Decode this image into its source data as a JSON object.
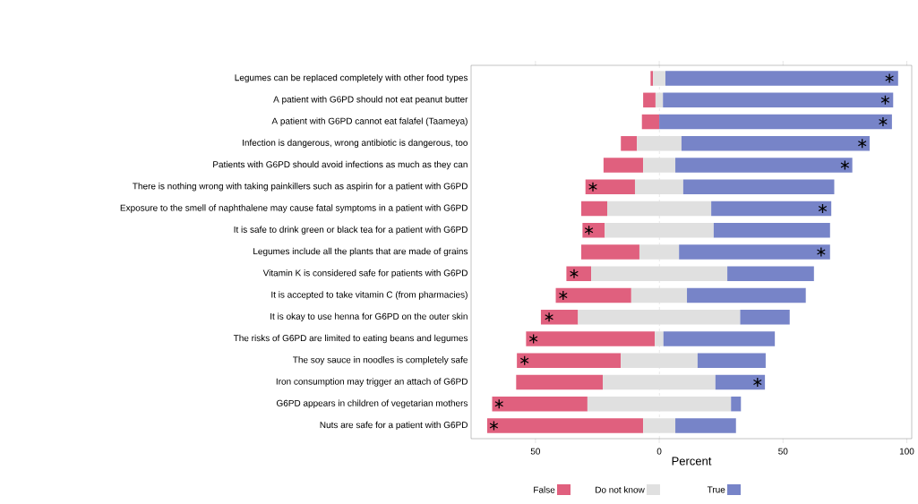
{
  "chart_data": {
    "type": "bar",
    "orientation": "horizontal",
    "xlabel": "Percent",
    "categories": [
      "Legumes can be replaced completely with other food types",
      "A patient with G6PD should not eat peanut butter",
      "A patient with G6PD cannot eat falafel (Taameya)",
      "Infection is dangerous, wrong antibiotic is dangerous, too",
      "Patients with G6PD should avoid infections as much as they can",
      "There is nothing wrong with taking painkillers such as aspirin for a patient with G6PD",
      "Exposure to the smell of naphthalene may cause fatal symptoms in a patient with G6PD",
      "It is safe to drink green or black tea for a patient with G6PD",
      "Legumes include all the plants that are made of grains",
      "Vitamin K is considered safe for patients with G6PD",
      "It is accepted to take vitamin C (from pharmacies)",
      "It is okay to use henna for G6PD on the outer skin",
      "The risks of G6PD are limited to eating beans and legumes",
      "The soy sauce in noodles is completely safe",
      "Iron consumption may trigger an attach of G6PD",
      "G6PD appears in children of vegetarian mothers",
      "Nuts are safe for a patient with G6PD"
    ],
    "series": [
      {
        "name": "False",
        "color": "#e0607e",
        "base": [
          -3.5,
          -6.5,
          -7,
          -15.5,
          -22.5,
          -29.8,
          -31.5,
          -31,
          -31.5,
          -37.5,
          -41.8,
          -47.8,
          -53.8,
          -57.5,
          -57.8,
          -67.5,
          -69.5
        ],
        "values": [
          1,
          5,
          7,
          6.5,
          16,
          20,
          10.5,
          9,
          23.5,
          10,
          30.5,
          15,
          52,
          42,
          35,
          38.5,
          63
        ]
      },
      {
        "name": "Do not know",
        "color": "#e0e0e0",
        "base": [
          -2.5,
          -1.5,
          null,
          -9,
          -6.5,
          -9.8,
          -21,
          -22,
          -8,
          -27.5,
          -11.3,
          -32.8,
          -1.8,
          -15.5,
          -22.8,
          -29,
          -6.5
        ],
        "values": [
          5,
          3,
          null,
          18,
          13,
          19.5,
          42,
          44,
          16,
          55,
          22.5,
          65.5,
          3.5,
          31,
          45.5,
          58,
          13
        ]
      },
      {
        "name": "True",
        "color": "#7784c8",
        "base": [
          2.5,
          1.5,
          0,
          9,
          6.5,
          9.7,
          21,
          22,
          8,
          27.5,
          11.2,
          32.7,
          1.7,
          15.5,
          22.7,
          29,
          6.5
        ],
        "values": [
          94,
          93,
          94,
          76,
          71.5,
          61,
          48.5,
          47,
          61,
          35,
          48,
          20,
          45,
          27.5,
          20,
          4,
          24.5
        ]
      },
      {
        "type": "scatter",
        "marker": "cross",
        "color": "#000000",
        "values": [
          93,
          91.3,
          90.4,
          82,
          75,
          -26.8,
          66,
          -28.4,
          65.4,
          -34.4,
          -38.8,
          -44.5,
          -50.8,
          -54.4,
          39.7,
          -64.7,
          -66.8
        ]
      }
    ],
    "xlim": [
      -76,
      102
    ],
    "xticks": [
      {
        "value": -50,
        "label": "50"
      },
      0,
      50,
      100
    ],
    "ref_lines": [
      {
        "axis": "x",
        "value": 0,
        "color": "#999999",
        "line_style": "dashed"
      }
    ],
    "legend": "bottom"
  }
}
